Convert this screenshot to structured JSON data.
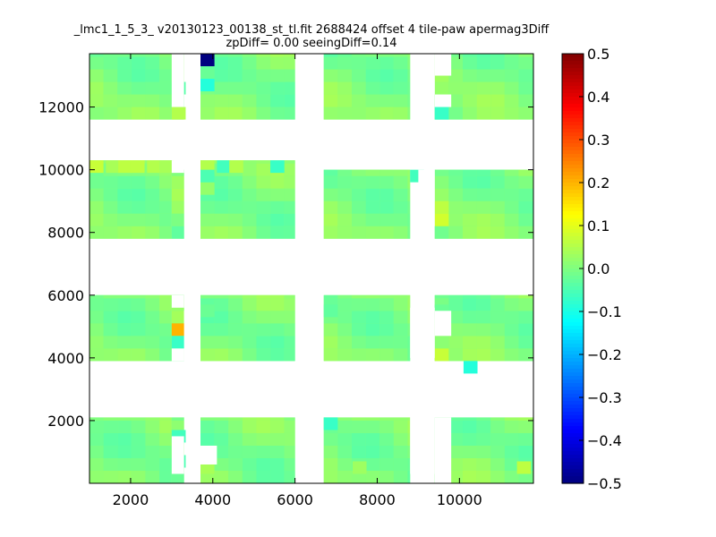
{
  "chart_data": {
    "type": "heatmap",
    "title_line1": "_lmc1_1_5_3_ v20130123_00138_st_tl.fit 2688424 offset 4 tile-paw apermag3Diff",
    "title_line2": "zpDiff= 0.00 seeingDiff=0.14",
    "xlabel": "",
    "ylabel": "",
    "xlim": [
      1000,
      11800
    ],
    "ylim": [
      0,
      13700
    ],
    "xticks": [
      2000,
      4000,
      6000,
      8000,
      10000
    ],
    "yticks": [
      2000,
      4000,
      6000,
      8000,
      10000,
      12000
    ],
    "colorbar": {
      "colormap": "jet",
      "range": [
        -0.5,
        0.5
      ],
      "ticks": [
        0.5,
        0.4,
        0.3,
        0.2,
        0.1,
        0.0,
        -0.1,
        -0.2,
        -0.3,
        -0.4,
        -0.5
      ],
      "tick_labels": [
        "0.5",
        "0.4",
        "0.3",
        "0.2",
        "0.1",
        "0.0",
        "−0.1",
        "−0.2",
        "−0.3",
        "−0.4",
        "−0.5"
      ]
    },
    "cell_size": [
      340,
      400
    ],
    "background_value": 0.0,
    "detector_blocks": [
      {
        "x": [
          1000,
          3000
        ],
        "y": [
          11600,
          13700
        ]
      },
      {
        "x": [
          3000,
          3300
        ],
        "y": [
          11600,
          13700
        ]
      },
      {
        "x": [
          3700,
          6000
        ],
        "y": [
          11600,
          13700
        ]
      },
      {
        "x": [
          6700,
          8800
        ],
        "y": [
          11600,
          13700
        ]
      },
      {
        "x": [
          9400,
          11800
        ],
        "y": [
          11600,
          13700
        ]
      },
      {
        "x": [
          1000,
          3000
        ],
        "y": [
          7800,
          10300
        ]
      },
      {
        "x": [
          3000,
          3300
        ],
        "y": [
          7800,
          10000
        ]
      },
      {
        "x": [
          3700,
          6000
        ],
        "y": [
          7800,
          10300
        ]
      },
      {
        "x": [
          6700,
          8800
        ],
        "y": [
          7800,
          10000
        ]
      },
      {
        "x": [
          9400,
          11800
        ],
        "y": [
          7800,
          10000
        ]
      },
      {
        "x": [
          1000,
          3000
        ],
        "y": [
          3900,
          6000
        ]
      },
      {
        "x": [
          3000,
          3300
        ],
        "y": [
          3900,
          6000
        ]
      },
      {
        "x": [
          3700,
          6000
        ],
        "y": [
          3900,
          6000
        ]
      },
      {
        "x": [
          6700,
          8800
        ],
        "y": [
          3900,
          6000
        ]
      },
      {
        "x": [
          9400,
          11800
        ],
        "y": [
          3900,
          6000
        ]
      },
      {
        "x": [
          1000,
          3000
        ],
        "y": [
          0,
          2100
        ]
      },
      {
        "x": [
          3000,
          3300
        ],
        "y": [
          0,
          2100
        ]
      },
      {
        "x": [
          3700,
          6000
        ],
        "y": [
          0,
          2100
        ]
      },
      {
        "x": [
          6700,
          8800
        ],
        "y": [
          0,
          2100
        ]
      },
      {
        "x": [
          9400,
          11800
        ],
        "y": [
          0,
          2100
        ]
      }
    ],
    "holes": [
      {
        "x": [
          3000,
          3300
        ],
        "y": [
          12000,
          13700
        ]
      },
      {
        "x": [
          9000,
          9400
        ],
        "y": [
          12400,
          13700
        ]
      },
      {
        "x": [
          9400,
          9800
        ],
        "y": [
          13000,
          13700
        ]
      },
      {
        "x": [
          9400,
          9800
        ],
        "y": [
          12000,
          12400
        ]
      },
      {
        "x": [
          3000,
          3300
        ],
        "y": [
          9900,
          10300
        ]
      },
      {
        "x": [
          9000,
          9400
        ],
        "y": [
          8200,
          10000
        ]
      },
      {
        "x": [
          3000,
          3300
        ],
        "y": [
          5600,
          6000
        ]
      },
      {
        "x": [
          3000,
          3300
        ],
        "y": [
          3900,
          4300
        ]
      },
      {
        "x": [
          3300,
          3700
        ],
        "y": [
          3900,
          5500
        ]
      },
      {
        "x": [
          8800,
          9400
        ],
        "y": [
          4000,
          5600
        ]
      },
      {
        "x": [
          9400,
          9800
        ],
        "y": [
          4700,
          5500
        ]
      },
      {
        "x": [
          3000,
          3300
        ],
        "y": [
          300,
          1500
        ]
      },
      {
        "x": [
          3700,
          4100
        ],
        "y": [
          600,
          1200
        ]
      },
      {
        "x": [
          8800,
          9400
        ],
        "y": [
          300,
          2100
        ]
      },
      {
        "x": [
          9400,
          9800
        ],
        "y": [
          0,
          2100
        ]
      }
    ],
    "cells": [
      {
        "x": 3700,
        "y": 13300,
        "v": -0.5
      },
      {
        "x": 3700,
        "y": 12500,
        "v": -0.09
      },
      {
        "x": 3000,
        "y": 11600,
        "v": 0.05
      },
      {
        "x": 3000,
        "y": 12400,
        "v": -0.04
      },
      {
        "x": 9400,
        "y": 11600,
        "v": -0.07
      },
      {
        "x": 1000,
        "y": 9900,
        "v": 0.07
      },
      {
        "x": 1400,
        "y": 9900,
        "v": 0.04
      },
      {
        "x": 1700,
        "y": 9900,
        "v": 0.06
      },
      {
        "x": 2000,
        "y": 9900,
        "v": 0.06
      },
      {
        "x": 2400,
        "y": 9900,
        "v": 0.05
      },
      {
        "x": 2700,
        "y": 9900,
        "v": 0.04
      },
      {
        "x": 3700,
        "y": 9900,
        "v": 0.05
      },
      {
        "x": 4100,
        "y": 9900,
        "v": -0.06
      },
      {
        "x": 4400,
        "y": 9900,
        "v": 0.05
      },
      {
        "x": 5400,
        "y": 9900,
        "v": -0.07
      },
      {
        "x": 3700,
        "y": 9200,
        "v": 0.02
      },
      {
        "x": 3700,
        "y": 9600,
        "v": -0.05
      },
      {
        "x": 8800,
        "y": 9600,
        "v": -0.06
      },
      {
        "x": 9400,
        "y": 8600,
        "v": 0.06
      },
      {
        "x": 9400,
        "y": 8200,
        "v": 0.08
      },
      {
        "x": 3000,
        "y": 4700,
        "v": 0.2
      },
      {
        "x": 3000,
        "y": 4300,
        "v": -0.07
      },
      {
        "x": 3700,
        "y": 5300,
        "v": -0.02
      },
      {
        "x": 6700,
        "y": 5300,
        "v": -0.03
      },
      {
        "x": 9400,
        "y": 5300,
        "v": -0.02
      },
      {
        "x": 9400,
        "y": 3900,
        "v": 0.07
      },
      {
        "x": 10100,
        "y": 3500,
        "v": -0.09
      },
      {
        "x": 3000,
        "y": 1300,
        "v": -0.06
      },
      {
        "x": 3000,
        "y": 500,
        "v": -0.05
      },
      {
        "x": 3700,
        "y": 300,
        "v": 0.04
      },
      {
        "x": 6700,
        "y": 1700,
        "v": -0.07
      },
      {
        "x": 7400,
        "y": 300,
        "v": 0.03
      },
      {
        "x": 11400,
        "y": 300,
        "v": 0.06
      }
    ]
  }
}
